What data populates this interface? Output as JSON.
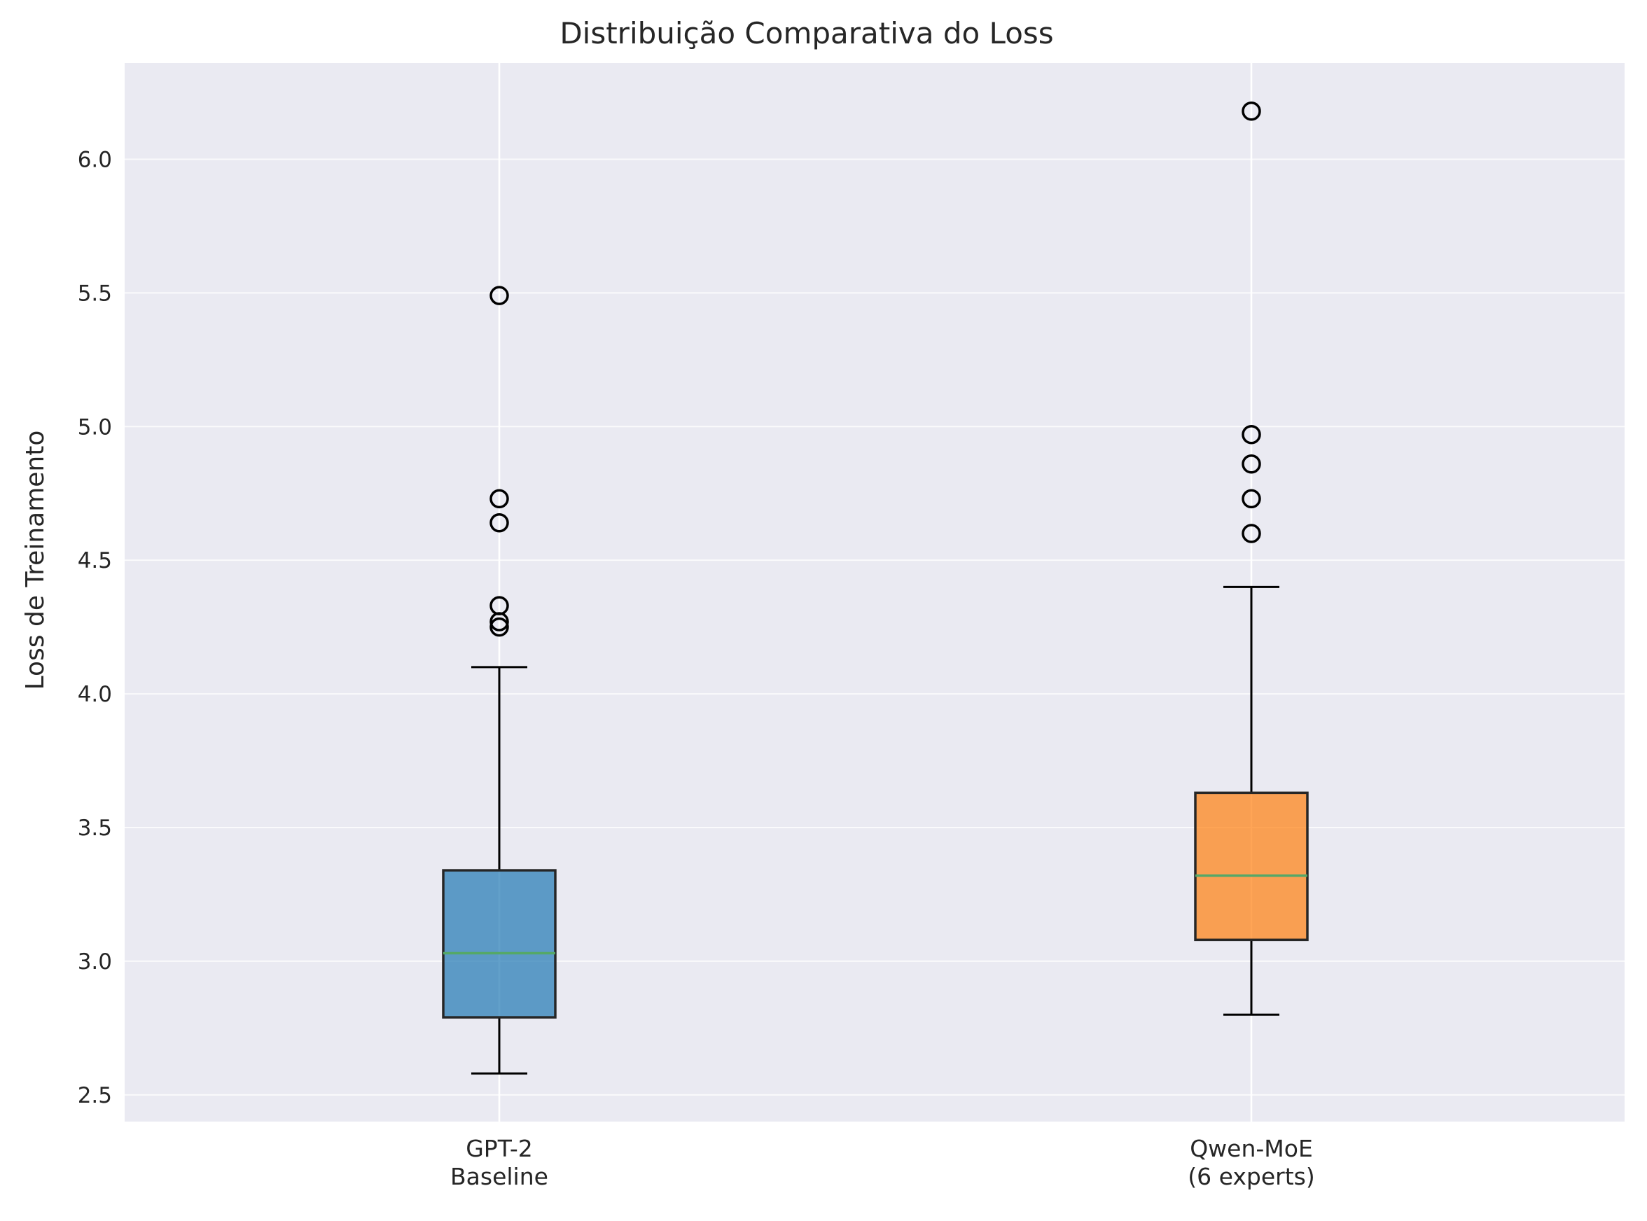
{
  "chart_data": {
    "type": "boxplot",
    "title": "Distribuição Comparativa do Loss",
    "xlabel": "",
    "ylabel": "Loss de Treinamento",
    "ylim": [
      2.4,
      6.36
    ],
    "yticks": [
      "2.5",
      "3.0",
      "3.5",
      "4.0",
      "4.5",
      "5.0",
      "5.5",
      "6.0"
    ],
    "grid": true,
    "categories": [
      [
        "GPT-2",
        "Baseline"
      ],
      [
        "Qwen-MoE",
        "(6 experts)"
      ]
    ],
    "series": [
      {
        "color": "#1f77b4",
        "whisker_low": 2.58,
        "q1": 2.79,
        "median": 3.03,
        "q3": 3.34,
        "whisker_high": 4.1,
        "outliers": [
          4.25,
          4.27,
          4.33,
          4.64,
          4.73,
          5.49
        ]
      },
      {
        "color": "#ff7f0e",
        "whisker_low": 2.8,
        "q1": 3.08,
        "median": 3.32,
        "q3": 3.63,
        "whisker_high": 4.4,
        "outliers": [
          4.6,
          4.73,
          4.86,
          4.97,
          6.18
        ]
      }
    ],
    "colors": {
      "background": "#eaeaf2",
      "grid": "#ffffff",
      "median": "#55a868",
      "edge": "#000000"
    }
  }
}
